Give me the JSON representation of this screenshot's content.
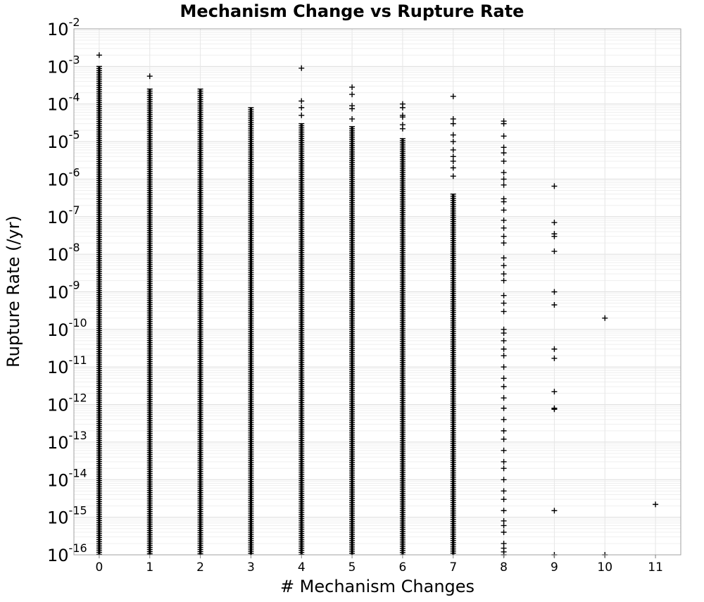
{
  "chart_data": {
    "type": "scatter",
    "title": "Mechanism Change vs Rupture Rate",
    "xlabel": "# Mechanism Changes",
    "ylabel": "Rupture Rate (/yr)",
    "yscale": "log",
    "xlim": [
      -0.5,
      11.5
    ],
    "ylim": [
      1e-16,
      0.01
    ],
    "x_ticks": [
      "0",
      "1",
      "2",
      "3",
      "4",
      "5",
      "6",
      "7",
      "8",
      "9",
      "10",
      "11"
    ],
    "y_ticks": [
      {
        "base": "10",
        "exp": "-16"
      },
      {
        "base": "10",
        "exp": "-15"
      },
      {
        "base": "10",
        "exp": "-14"
      },
      {
        "base": "10",
        "exp": "-13"
      },
      {
        "base": "10",
        "exp": "-12"
      },
      {
        "base": "10",
        "exp": "-11"
      },
      {
        "base": "10",
        "exp": "-10"
      },
      {
        "base": "10",
        "exp": "-9"
      },
      {
        "base": "10",
        "exp": "-8"
      },
      {
        "base": "10",
        "exp": "-7"
      },
      {
        "base": "10",
        "exp": "-6"
      },
      {
        "base": "10",
        "exp": "-5"
      },
      {
        "base": "10",
        "exp": "-4"
      },
      {
        "base": "10",
        "exp": "-3"
      },
      {
        "base": "10",
        "exp": "-2"
      }
    ],
    "grid": true,
    "marker": "plus",
    "marker_color": "#000000",
    "dense_ranges": [
      {
        "x": 0,
        "y_min": 1e-16,
        "y_max": 0.001
      },
      {
        "x": 1,
        "y_min": 1e-16,
        "y_max": 0.00025
      },
      {
        "x": 2,
        "y_min": 1e-16,
        "y_max": 0.00025
      },
      {
        "x": 3,
        "y_min": 1e-16,
        "y_max": 8e-05
      },
      {
        "x": 4,
        "y_min": 1e-16,
        "y_max": 3e-05
      },
      {
        "x": 5,
        "y_min": 1e-16,
        "y_max": 2.5e-05
      },
      {
        "x": 6,
        "y_min": 1e-16,
        "y_max": 1.2e-05
      },
      {
        "x": 7,
        "y_min": 1e-16,
        "y_max": 4e-07
      }
    ],
    "points": [
      {
        "x": 0,
        "y": 0.002
      },
      {
        "x": 1,
        "y": 0.00055
      },
      {
        "x": 4,
        "y": 0.0009
      },
      {
        "x": 4,
        "y": 0.00012
      },
      {
        "x": 4,
        "y": 8e-05
      },
      {
        "x": 4,
        "y": 5e-05
      },
      {
        "x": 5,
        "y": 0.00028
      },
      {
        "x": 5,
        "y": 0.00018
      },
      {
        "x": 5,
        "y": 9e-05
      },
      {
        "x": 5,
        "y": 7.5e-05
      },
      {
        "x": 5,
        "y": 4e-05
      },
      {
        "x": 6,
        "y": 0.0001
      },
      {
        "x": 6,
        "y": 8e-05
      },
      {
        "x": 6,
        "y": 5e-05
      },
      {
        "x": 6,
        "y": 4.5e-05
      },
      {
        "x": 6,
        "y": 2.8e-05
      },
      {
        "x": 6,
        "y": 2.2e-05
      },
      {
        "x": 7,
        "y": 0.00016
      },
      {
        "x": 7,
        "y": 4e-05
      },
      {
        "x": 7,
        "y": 3e-05
      },
      {
        "x": 7,
        "y": 1.5e-05
      },
      {
        "x": 7,
        "y": 1e-05
      },
      {
        "x": 7,
        "y": 6e-06
      },
      {
        "x": 7,
        "y": 4e-06
      },
      {
        "x": 7,
        "y": 3e-06
      },
      {
        "x": 7,
        "y": 2e-06
      },
      {
        "x": 7,
        "y": 1.2e-06
      },
      {
        "x": 8,
        "y": 3.5e-05
      },
      {
        "x": 8,
        "y": 3e-05
      },
      {
        "x": 8,
        "y": 1.4e-05
      },
      {
        "x": 8,
        "y": 7e-06
      },
      {
        "x": 8,
        "y": 5e-06
      },
      {
        "x": 8,
        "y": 3e-06
      },
      {
        "x": 8,
        "y": 1.5e-06
      },
      {
        "x": 8,
        "y": 1e-06
      },
      {
        "x": 8,
        "y": 7e-07
      },
      {
        "x": 8,
        "y": 3e-07
      },
      {
        "x": 8,
        "y": 2.5e-07
      },
      {
        "x": 8,
        "y": 1.5e-07
      },
      {
        "x": 8,
        "y": 8e-08
      },
      {
        "x": 8,
        "y": 5e-08
      },
      {
        "x": 8,
        "y": 3e-08
      },
      {
        "x": 8,
        "y": 2e-08
      },
      {
        "x": 8,
        "y": 8e-09
      },
      {
        "x": 8,
        "y": 5e-09
      },
      {
        "x": 8,
        "y": 3e-09
      },
      {
        "x": 8,
        "y": 2e-09
      },
      {
        "x": 8,
        "y": 8e-10
      },
      {
        "x": 8,
        "y": 5e-10
      },
      {
        "x": 8,
        "y": 3e-10
      },
      {
        "x": 8,
        "y": 1e-10
      },
      {
        "x": 8,
        "y": 8e-11
      },
      {
        "x": 8,
        "y": 5e-11
      },
      {
        "x": 8,
        "y": 3e-11
      },
      {
        "x": 8,
        "y": 2e-11
      },
      {
        "x": 8,
        "y": 1e-11
      },
      {
        "x": 8,
        "y": 5e-12
      },
      {
        "x": 8,
        "y": 3e-12
      },
      {
        "x": 8,
        "y": 1.5e-12
      },
      {
        "x": 8,
        "y": 8e-13
      },
      {
        "x": 8,
        "y": 4e-13
      },
      {
        "x": 8,
        "y": 2e-13
      },
      {
        "x": 8,
        "y": 1.2e-13
      },
      {
        "x": 8,
        "y": 6e-14
      },
      {
        "x": 8,
        "y": 3e-14
      },
      {
        "x": 8,
        "y": 2e-14
      },
      {
        "x": 8,
        "y": 1e-14
      },
      {
        "x": 8,
        "y": 5e-15
      },
      {
        "x": 8,
        "y": 3e-15
      },
      {
        "x": 8,
        "y": 1.5e-15
      },
      {
        "x": 8,
        "y": 8e-16
      },
      {
        "x": 8,
        "y": 6e-16
      },
      {
        "x": 8,
        "y": 4e-16
      },
      {
        "x": 8,
        "y": 2e-16
      },
      {
        "x": 8,
        "y": 1.5e-16
      },
      {
        "x": 8,
        "y": 1.2e-16
      },
      {
        "x": 8,
        "y": 1e-16
      },
      {
        "x": 9,
        "y": 6.5e-07
      },
      {
        "x": 9,
        "y": 7e-08
      },
      {
        "x": 9,
        "y": 3.5e-08
      },
      {
        "x": 9,
        "y": 3e-08
      },
      {
        "x": 9,
        "y": 1.2e-08
      },
      {
        "x": 9,
        "y": 1e-09
      },
      {
        "x": 9,
        "y": 4.5e-10
      },
      {
        "x": 9,
        "y": 3e-11
      },
      {
        "x": 9,
        "y": 1.7e-11
      },
      {
        "x": 9,
        "y": 2.2e-12
      },
      {
        "x": 9,
        "y": 8e-13
      },
      {
        "x": 9,
        "y": 7.5e-13
      },
      {
        "x": 9,
        "y": 1.5e-15
      },
      {
        "x": 9,
        "y": 1e-16
      },
      {
        "x": 10,
        "y": 2e-10
      },
      {
        "x": 10,
        "y": 1e-16
      },
      {
        "x": 11,
        "y": 2.2e-15
      }
    ]
  }
}
